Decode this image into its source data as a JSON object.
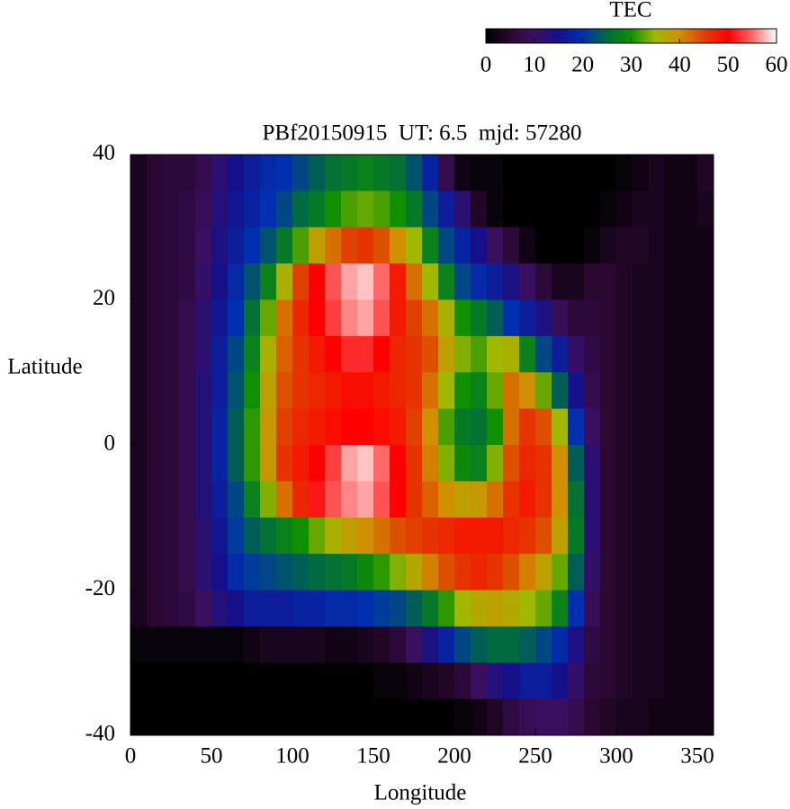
{
  "chart_data": {
    "type": "heatmap",
    "title": "PBf20150915  UT: 6.5  mjd: 57280",
    "x_label": "Longitude",
    "y_label": "Latitude",
    "xlim": [
      0,
      360
    ],
    "xticks": [
      0,
      50,
      100,
      150,
      200,
      250,
      300,
      350
    ],
    "ylim": [
      -40,
      40
    ],
    "yticks": [
      -40,
      -20,
      0,
      20,
      40
    ],
    "colorbar_label": "TEC",
    "clim": [
      0,
      60
    ],
    "cticks": [
      0,
      10,
      20,
      30,
      40,
      50,
      60
    ],
    "palette": [
      "#000000",
      "#2a0830",
      "#3a0f60",
      "#15108a",
      "#0030b0",
      "#006a40",
      "#109000",
      "#a0b800",
      "#d09000",
      "#e04000",
      "#ff0000",
      "#ff6868",
      "#ffffff"
    ],
    "x": [
      5,
      15,
      25,
      35,
      45,
      55,
      65,
      75,
      85,
      95,
      105,
      115,
      125,
      135,
      145,
      155,
      165,
      175,
      185,
      195,
      205,
      215,
      225,
      235,
      245,
      255,
      265,
      275,
      285,
      295,
      305,
      315,
      325,
      335,
      345,
      355
    ],
    "y": [
      37.5,
      32.5,
      27.5,
      22.5,
      17.5,
      12.5,
      7.5,
      2.5,
      -2.5,
      -7.5,
      -12.5,
      -17.5,
      -22.5,
      -27.5,
      -32.5,
      -37.5
    ],
    "z": [
      [
        3,
        5,
        6,
        6,
        8,
        12,
        15,
        17,
        19,
        20,
        22,
        24,
        26,
        27,
        28,
        27,
        26,
        23,
        18,
        8,
        2,
        1,
        1,
        0,
        0,
        0,
        0,
        0,
        0,
        0,
        1,
        2,
        3,
        2,
        2,
        4
      ],
      [
        3,
        5,
        6,
        7,
        9,
        13,
        16,
        18,
        20,
        22,
        25,
        27,
        30,
        32,
        33,
        32,
        30,
        27,
        22,
        17,
        12,
        4,
        1,
        0,
        0,
        0,
        0,
        0,
        0,
        1,
        2,
        3,
        3,
        2,
        2,
        3
      ],
      [
        3,
        5,
        6,
        7,
        10,
        14,
        17,
        20,
        23,
        27,
        32,
        38,
        42,
        45,
        46,
        44,
        40,
        35,
        28,
        22,
        18,
        15,
        10,
        6,
        2,
        0,
        0,
        0,
        1,
        3,
        4,
        4,
        3,
        2,
        2,
        2
      ],
      [
        3,
        5,
        6,
        7,
        11,
        15,
        19,
        23,
        28,
        36,
        45,
        50,
        54,
        57,
        58,
        55,
        48,
        42,
        35,
        28,
        22,
        19,
        17,
        14,
        10,
        6,
        3,
        3,
        5,
        5,
        4,
        3,
        3,
        2,
        2,
        2
      ],
      [
        3,
        5,
        6,
        8,
        12,
        16,
        20,
        26,
        33,
        42,
        47,
        50,
        53,
        56,
        57,
        54,
        48,
        45,
        42,
        36,
        30,
        27,
        24,
        20,
        17,
        14,
        9,
        6,
        6,
        5,
        4,
        3,
        3,
        2,
        2,
        2
      ],
      [
        3,
        5,
        6,
        8,
        12,
        17,
        22,
        28,
        36,
        43,
        46,
        48,
        50,
        52,
        52,
        50,
        47,
        46,
        44,
        38,
        34,
        32,
        35,
        36,
        28,
        22,
        17,
        11,
        7,
        5,
        4,
        3,
        3,
        2,
        2,
        2
      ],
      [
        3,
        5,
        6,
        8,
        13,
        17,
        23,
        30,
        38,
        44,
        46,
        47,
        48,
        49,
        49,
        48,
        47,
        46,
        42,
        35,
        30,
        28,
        33,
        42,
        40,
        33,
        24,
        15,
        8,
        5,
        4,
        3,
        3,
        2,
        2,
        2
      ],
      [
        3,
        5,
        6,
        8,
        13,
        18,
        24,
        31,
        39,
        45,
        47,
        48,
        49,
        50,
        50,
        49,
        48,
        45,
        40,
        32,
        27,
        26,
        30,
        42,
        46,
        44,
        35,
        20,
        10,
        5,
        4,
        3,
        3,
        2,
        2,
        2
      ],
      [
        3,
        5,
        6,
        8,
        13,
        18,
        24,
        31,
        39,
        46,
        48,
        50,
        53,
        57,
        58,
        55,
        50,
        46,
        41,
        34,
        29,
        28,
        34,
        44,
        47,
        46,
        40,
        24,
        12,
        5,
        4,
        3,
        3,
        2,
        2,
        2
      ],
      [
        3,
        5,
        6,
        8,
        13,
        17,
        22,
        28,
        34,
        42,
        47,
        51,
        54,
        56,
        57,
        54,
        50,
        46,
        43,
        40,
        38,
        39,
        42,
        46,
        48,
        46,
        40,
        26,
        12,
        5,
        4,
        3,
        3,
        2,
        2,
        2
      ],
      [
        3,
        5,
        6,
        8,
        12,
        16,
        21,
        24,
        26,
        28,
        30,
        33,
        36,
        38,
        40,
        42,
        44,
        45,
        46,
        47,
        48,
        48,
        48,
        47,
        46,
        44,
        38,
        27,
        12,
        5,
        4,
        3,
        3,
        2,
        2,
        2
      ],
      [
        3,
        5,
        6,
        8,
        12,
        15,
        19,
        21,
        22,
        23,
        24,
        25,
        26,
        27,
        29,
        31,
        34,
        37,
        41,
        44,
        46,
        47,
        46,
        44,
        41,
        38,
        33,
        24,
        11,
        5,
        4,
        3,
        3,
        2,
        2,
        2
      ],
      [
        3,
        5,
        6,
        7,
        10,
        13,
        15,
        17,
        17,
        17,
        18,
        18,
        19,
        19,
        20,
        21,
        22,
        24,
        27,
        31,
        35,
        37,
        38,
        37,
        35,
        33,
        28,
        20,
        9,
        5,
        4,
        3,
        3,
        2,
        2,
        2
      ],
      [
        1,
        1,
        1,
        1,
        1,
        1,
        1,
        2,
        3,
        3,
        3,
        3,
        2,
        2,
        3,
        4,
        6,
        10,
        14,
        18,
        22,
        24,
        25,
        25,
        24,
        22,
        19,
        14,
        7,
        5,
        4,
        3,
        3,
        2,
        2,
        2
      ],
      [
        0,
        0,
        0,
        0,
        0,
        0,
        0,
        0,
        0,
        0,
        0,
        0,
        0,
        0,
        0,
        1,
        1,
        2,
        3,
        4,
        6,
        10,
        13,
        15,
        17,
        17,
        15,
        11,
        6,
        5,
        4,
        3,
        3,
        2,
        2,
        2
      ],
      [
        0,
        0,
        0,
        0,
        0,
        0,
        0,
        0,
        0,
        0,
        0,
        0,
        0,
        0,
        0,
        0,
        0,
        0,
        0,
        0,
        1,
        2,
        4,
        7,
        9,
        10,
        10,
        8,
        5,
        4,
        3,
        3,
        2,
        2,
        2,
        2
      ]
    ]
  }
}
